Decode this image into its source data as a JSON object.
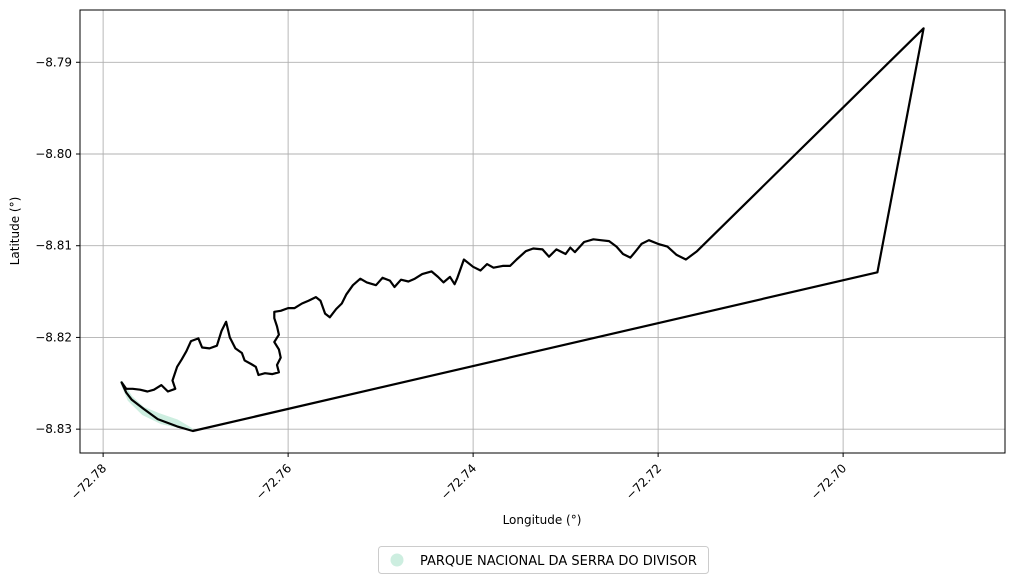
{
  "chart_data": {
    "type": "map",
    "xlabel": "Longitude (°)",
    "ylabel": "Latitude (°)",
    "xlim": [
      -72.7825,
      -72.6825
    ],
    "ylim": [
      -8.8326,
      -8.7843
    ],
    "xticks": [
      -72.78,
      -72.76,
      -72.74,
      -72.72,
      -72.7
    ],
    "xtick_labels": [
      "−72.78",
      "−72.76",
      "−72.74",
      "−72.72",
      "−72.70"
    ],
    "yticks": [
      -8.79,
      -8.8,
      -8.81,
      -8.82,
      -8.83
    ],
    "ytick_labels": [
      "−8.79",
      "−8.80",
      "−8.81",
      "−8.82",
      "−8.83"
    ],
    "grid": true,
    "legend_position": "bottom-center",
    "series": [
      {
        "name": "PARQUE NACIONAL DA SERRA DO DIVISOR",
        "kind": "filled-area",
        "color": "#cdeee0",
        "points": [
          [
            -72.778,
            -8.8249
          ],
          [
            -72.777,
            -8.8265
          ],
          [
            -72.7757,
            -8.8277
          ],
          [
            -72.774,
            -8.8284
          ],
          [
            -72.772,
            -8.8291
          ],
          [
            -72.7705,
            -8.83
          ],
          [
            -72.7737,
            -8.8293
          ],
          [
            -72.7757,
            -8.8283
          ],
          [
            -72.7772,
            -8.8268
          ],
          [
            -72.778,
            -8.8249
          ]
        ]
      },
      {
        "name": "",
        "kind": "boundary-line",
        "color": "#000000",
        "points": [
          [
            -72.778,
            -8.8249
          ],
          [
            -72.7775,
            -8.826
          ],
          [
            -72.7769,
            -8.8268
          ],
          [
            -72.7756,
            -8.8278
          ],
          [
            -72.7741,
            -8.8289
          ],
          [
            -72.772,
            -8.8297
          ],
          [
            -72.7703,
            -8.8302
          ],
          [
            -72.6963,
            -8.8129
          ],
          [
            -72.6913,
            -8.7863
          ],
          [
            -72.7158,
            -8.8106
          ],
          [
            -72.717,
            -8.8115
          ],
          [
            -72.718,
            -8.811
          ],
          [
            -72.719,
            -8.8101
          ],
          [
            -72.72,
            -8.8098
          ],
          [
            -72.721,
            -8.8094
          ],
          [
            -72.7218,
            -8.8098
          ],
          [
            -72.7225,
            -8.8107
          ],
          [
            -72.723,
            -8.8113
          ],
          [
            -72.7238,
            -8.8109
          ],
          [
            -72.7245,
            -8.8101
          ],
          [
            -72.7253,
            -8.8095
          ],
          [
            -72.7262,
            -8.8094
          ],
          [
            -72.727,
            -8.8093
          ],
          [
            -72.728,
            -8.8096
          ],
          [
            -72.729,
            -8.8107
          ],
          [
            -72.7295,
            -8.8102
          ],
          [
            -72.73,
            -8.8109
          ],
          [
            -72.731,
            -8.8104
          ],
          [
            -72.7318,
            -8.8112
          ],
          [
            -72.7325,
            -8.8104
          ],
          [
            -72.7335,
            -8.8103
          ],
          [
            -72.7343,
            -8.8106
          ],
          [
            -72.7353,
            -8.8115
          ],
          [
            -72.736,
            -8.8122
          ],
          [
            -72.7368,
            -8.8122
          ],
          [
            -72.7378,
            -8.8124
          ],
          [
            -72.7385,
            -8.812
          ],
          [
            -72.7392,
            -8.8127
          ],
          [
            -72.74,
            -8.8123
          ],
          [
            -72.741,
            -8.8115
          ],
          [
            -72.7417,
            -8.8135
          ],
          [
            -72.742,
            -8.8142
          ],
          [
            -72.7425,
            -8.8134
          ],
          [
            -72.7432,
            -8.814
          ],
          [
            -72.7438,
            -8.8134
          ],
          [
            -72.7445,
            -8.8128
          ],
          [
            -72.7455,
            -8.8131
          ],
          [
            -72.7463,
            -8.8136
          ],
          [
            -72.747,
            -8.8139
          ],
          [
            -72.7478,
            -8.8137
          ],
          [
            -72.7485,
            -8.8145
          ],
          [
            -72.749,
            -8.8138
          ],
          [
            -72.7498,
            -8.8135
          ],
          [
            -72.7505,
            -8.8143
          ],
          [
            -72.7515,
            -8.814
          ],
          [
            -72.7522,
            -8.8136
          ],
          [
            -72.753,
            -8.8143
          ],
          [
            -72.7537,
            -8.8153
          ],
          [
            -72.7542,
            -8.8163
          ],
          [
            -72.7548,
            -8.8169
          ],
          [
            -72.7555,
            -8.8178
          ],
          [
            -72.756,
            -8.8174
          ],
          [
            -72.7565,
            -8.816
          ],
          [
            -72.757,
            -8.8156
          ],
          [
            -72.7578,
            -8.816
          ],
          [
            -72.7585,
            -8.8163
          ],
          [
            -72.7593,
            -8.8168
          ],
          [
            -72.76,
            -8.8168
          ],
          [
            -72.7608,
            -8.8171
          ],
          [
            -72.7615,
            -8.8172
          ],
          [
            -72.7615,
            -8.8179
          ],
          [
            -72.7612,
            -8.8188
          ],
          [
            -72.761,
            -8.8197
          ],
          [
            -72.7615,
            -8.8205
          ],
          [
            -72.761,
            -8.8213
          ],
          [
            -72.7608,
            -8.8222
          ],
          [
            -72.7612,
            -8.823
          ],
          [
            -72.761,
            -8.8238
          ],
          [
            -72.7617,
            -8.824
          ],
          [
            -72.7625,
            -8.8239
          ],
          [
            -72.7632,
            -8.8241
          ],
          [
            -72.7635,
            -8.8232
          ],
          [
            -72.764,
            -8.8229
          ],
          [
            -72.7647,
            -8.8225
          ],
          [
            -72.765,
            -8.8217
          ],
          [
            -72.7657,
            -8.8212
          ],
          [
            -72.7663,
            -8.82
          ],
          [
            -72.7667,
            -8.8183
          ],
          [
            -72.7672,
            -8.8193
          ],
          [
            -72.7677,
            -8.8209
          ],
          [
            -72.7685,
            -8.8212
          ],
          [
            -72.7693,
            -8.8211
          ],
          [
            -72.7697,
            -8.8201
          ],
          [
            -72.7705,
            -8.8204
          ],
          [
            -72.771,
            -8.8215
          ],
          [
            -72.7715,
            -8.8224
          ],
          [
            -72.772,
            -8.8232
          ],
          [
            -72.7725,
            -8.8247
          ],
          [
            -72.7722,
            -8.8256
          ],
          [
            -72.773,
            -8.8259
          ],
          [
            -72.7737,
            -8.8252
          ],
          [
            -72.7745,
            -8.8257
          ],
          [
            -72.7752,
            -8.8259
          ],
          [
            -72.776,
            -8.8257
          ],
          [
            -72.7768,
            -8.8256
          ],
          [
            -72.7775,
            -8.8256
          ],
          [
            -72.778,
            -8.8249
          ]
        ]
      }
    ]
  },
  "legend": {
    "label": "PARQUE NACIONAL DA SERRA DO DIVISOR",
    "color": "#cdeee0"
  }
}
